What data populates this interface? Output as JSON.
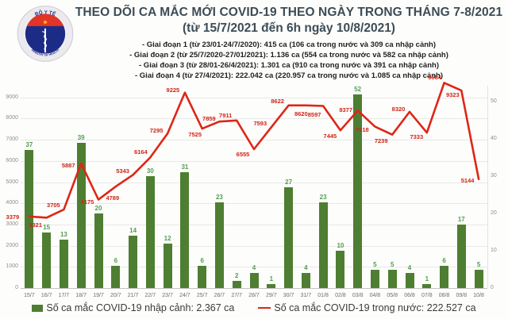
{
  "header": {
    "title": "THEO DÕI CA MẮC MỚI COVID-19 THEO NGÀY TRONG THÁNG 7-8/2021",
    "subtitle": "(từ 15/7/2021 đến 6h ngày 10/8/2021)",
    "bullets": [
      "- Giai đoạn 1 (từ 23/01-24/7/2020): 415 ca (106 ca trong nước và 309 ca nhập cảnh)",
      "- Giai đoạn 2 (từ 25/7/2020-27/01/2021): 1.136 ca (554 ca trong nước và 582 ca nhập cảnh)",
      "- Giai đoạn 3 (từ 28/01-26/4/2021): 1.301 ca (910 ca trong nước và 391 ca nhập cảnh)",
      "- Giai đoạn 4 (từ 27/4/2021): 222.042 ca (220.957 ca trong nước và 1.085 ca nhập cảnh)"
    ],
    "logo": {
      "arc_top": "BỘ Y TẾ",
      "arc_bottom": "MINISTRY OF HEALTH",
      "star": "★"
    }
  },
  "chart_data": {
    "type": "bar+line",
    "categories": [
      "15/7",
      "16/7",
      "17/7",
      "18/7",
      "19/7",
      "20/7",
      "21/7",
      "22/7",
      "23/7",
      "24/7",
      "25/7",
      "26/7",
      "27/7",
      "28/7",
      "29/7",
      "30/7",
      "31/7",
      "01/8",
      "02/8",
      "03/8",
      "04/8",
      "05/8",
      "06/8",
      "07/8",
      "08/8",
      "09/8",
      "10/8"
    ],
    "series": [
      {
        "name": "Số ca mắc COVID-19 nhập cảnh: 2.367 ca",
        "type": "bar",
        "axis": "right",
        "color": "#4e7e32",
        "values": [
          37,
          15,
          13,
          39,
          20,
          6,
          14,
          30,
          12,
          31,
          6,
          23,
          2,
          4,
          1,
          27,
          4,
          23,
          10,
          52,
          5,
          5,
          4,
          1,
          6,
          17,
          5
        ]
      },
      {
        "name": "Số ca mắc COVID-19 trong nước: 222.527 ca",
        "type": "line",
        "axis": "left",
        "color": "#dd2617",
        "values": [
          3379,
          3321,
          3705,
          5887,
          4175,
          4789,
          5343,
          6164,
          7295,
          9225,
          7525,
          7859,
          7911,
          6555,
          7593,
          8622,
          8620,
          8597,
          7445,
          8377,
          7618,
          7239,
          8320,
          7333,
          9684,
          9323,
          5144
        ]
      }
    ],
    "left_axis": {
      "ticks": [
        0,
        1000,
        2000,
        3000,
        4000,
        5000,
        6000,
        7000,
        8000,
        9000
      ],
      "lim": [
        0,
        9500
      ]
    },
    "right_axis": {
      "ticks": [
        0,
        10,
        20,
        30,
        40,
        50
      ],
      "lim": [
        0,
        54
      ]
    },
    "grid": "horizontal",
    "legend_position": "bottom"
  }
}
